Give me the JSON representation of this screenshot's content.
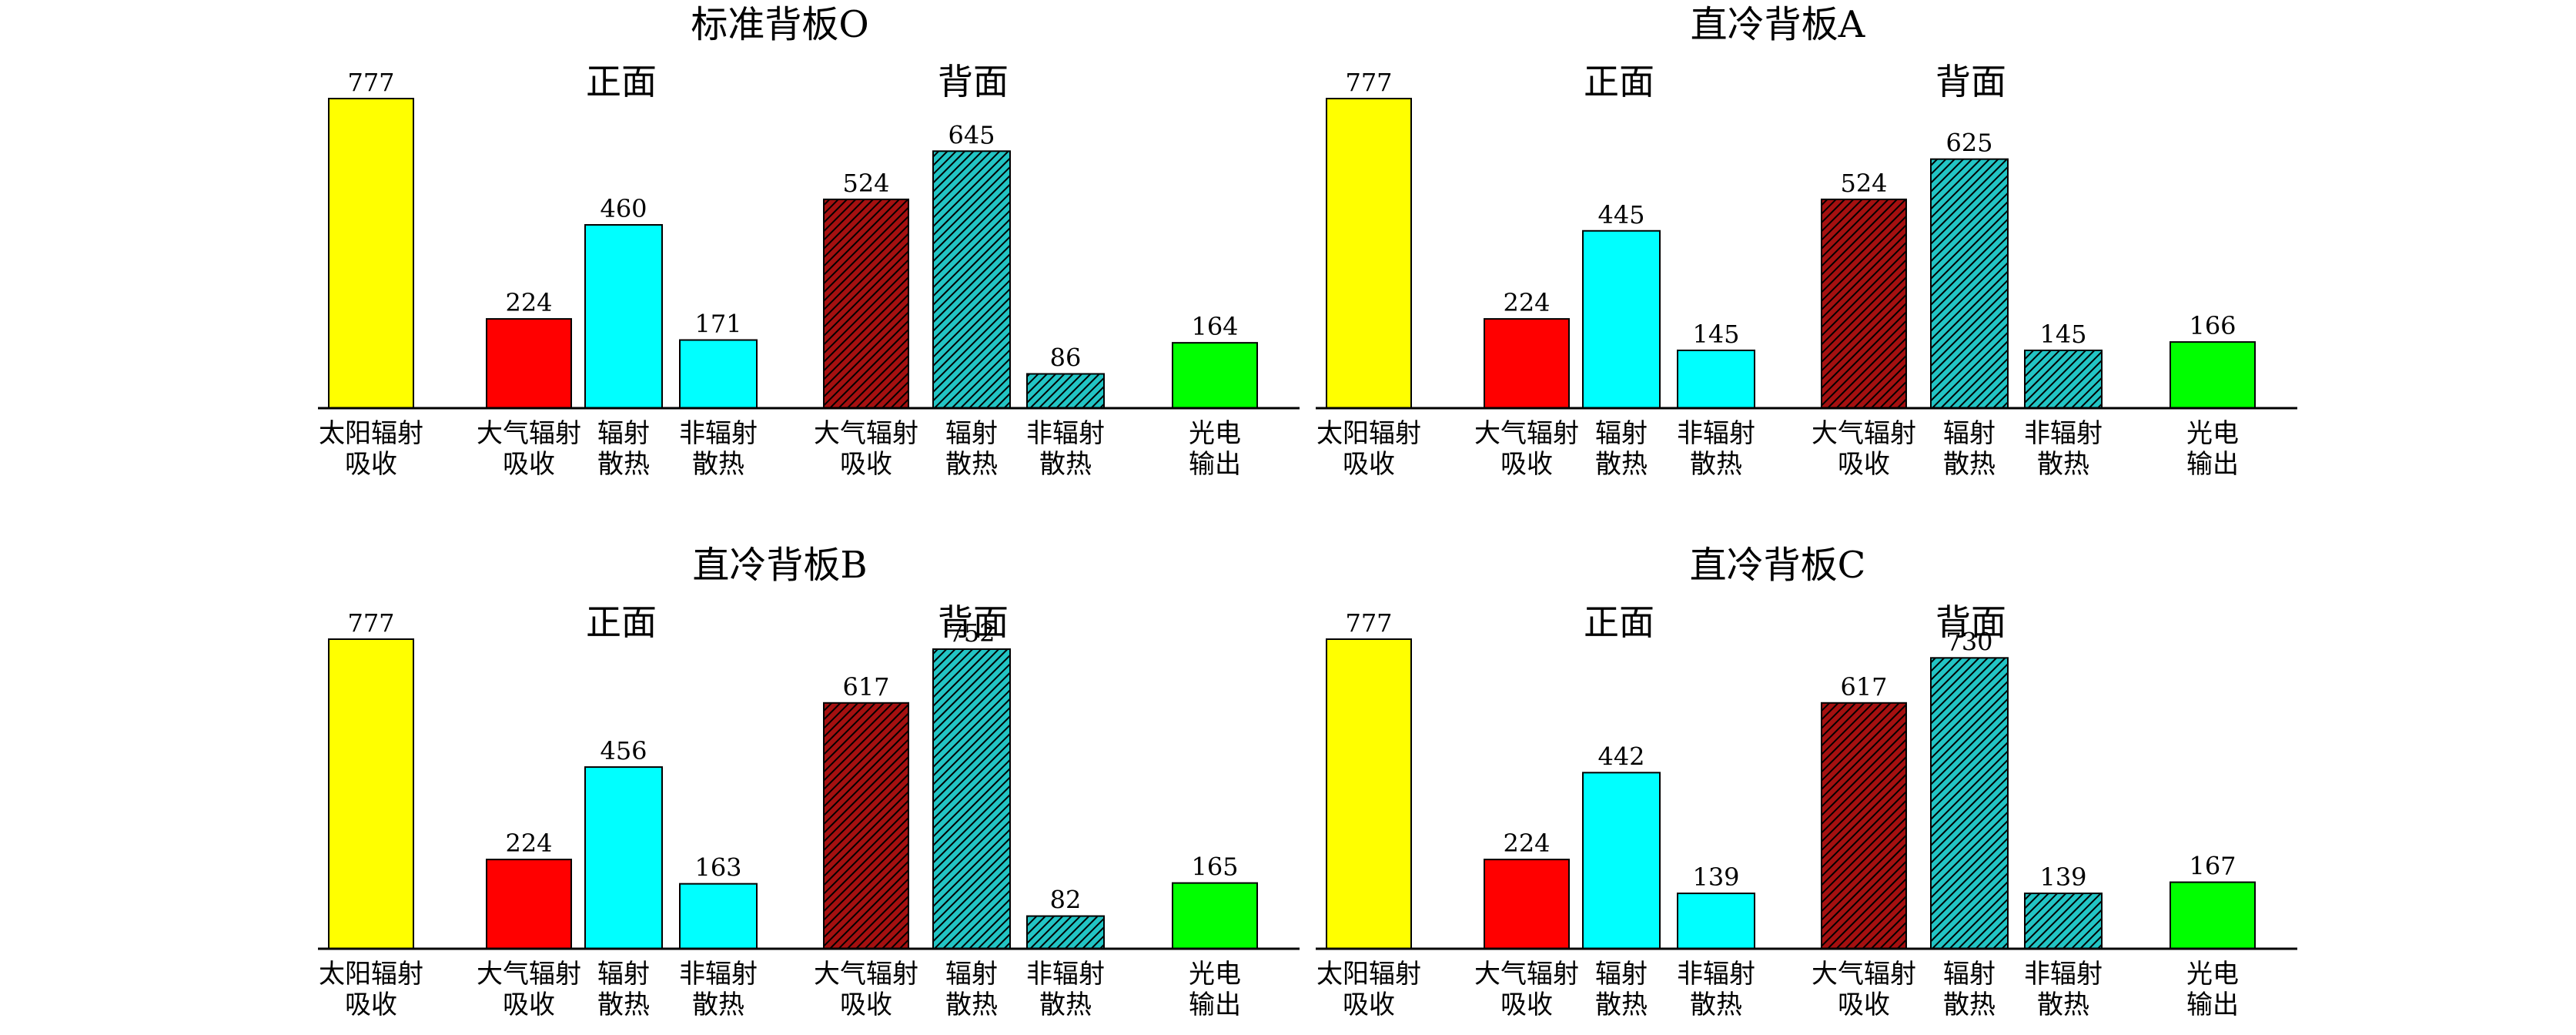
{
  "chart_data": [
    {
      "type": "bar",
      "title": "标准背板O",
      "section_labels": [
        "正面",
        "背面"
      ],
      "categories": [
        "太阳辐射\n吸收",
        "大气辐射\n吸收",
        "辐射\n散热",
        "非辐射\n散热",
        "大气辐射\n吸收",
        "辐射\n散热",
        "非辐射\n散热",
        "光电\n输出"
      ],
      "values": [
        777,
        224,
        460,
        171,
        524,
        645,
        86,
        164
      ],
      "ylim": [
        0,
        800
      ]
    },
    {
      "type": "bar",
      "title": "直冷背板A",
      "section_labels": [
        "正面",
        "背面"
      ],
      "categories": [
        "太阳辐射\n吸收",
        "大气辐射\n吸收",
        "辐射\n散热",
        "非辐射\n散热",
        "大气辐射\n吸收",
        "辐射\n散热",
        "非辐射\n散热",
        "光电\n输出"
      ],
      "values": [
        777,
        224,
        445,
        145,
        524,
        625,
        145,
        166
      ],
      "ylim": [
        0,
        800
      ]
    },
    {
      "type": "bar",
      "title": "直冷背板B",
      "section_labels": [
        "正面",
        "背面"
      ],
      "categories": [
        "太阳辐射\n吸收",
        "大气辐射\n吸收",
        "辐射\n散热",
        "非辐射\n散热",
        "大气辐射\n吸收",
        "辐射\n散热",
        "非辐射\n散热",
        "光电\n输出"
      ],
      "values": [
        777,
        224,
        456,
        163,
        617,
        752,
        82,
        165
      ],
      "ylim": [
        0,
        800
      ]
    },
    {
      "type": "bar",
      "title": "直冷背板C",
      "section_labels": [
        "正面",
        "背面"
      ],
      "categories": [
        "太阳辐射\n吸收",
        "大气辐射\n吸收",
        "辐射\n散热",
        "非辐射\n散热",
        "大气辐射\n吸收",
        "辐射\n散热",
        "非辐射\n散热",
        "光电\n输出"
      ],
      "values": [
        777,
        224,
        442,
        139,
        617,
        730,
        139,
        167
      ],
      "ylim": [
        0,
        800
      ]
    }
  ],
  "bar_styles": [
    {
      "fill": "#ffff00",
      "pattern": "none"
    },
    {
      "fill": "#ff0000",
      "pattern": "none"
    },
    {
      "fill": "#00ffff",
      "pattern": "none"
    },
    {
      "fill": "#00ffff",
      "pattern": "none"
    },
    {
      "fill": "#a51010",
      "pattern": "hatch-dense"
    },
    {
      "fill": "#22c4c4",
      "pattern": "hatch-dense"
    },
    {
      "fill": "#22c4c4",
      "pattern": "hatch-dense"
    },
    {
      "fill": "#00ff00",
      "pattern": "none"
    }
  ]
}
